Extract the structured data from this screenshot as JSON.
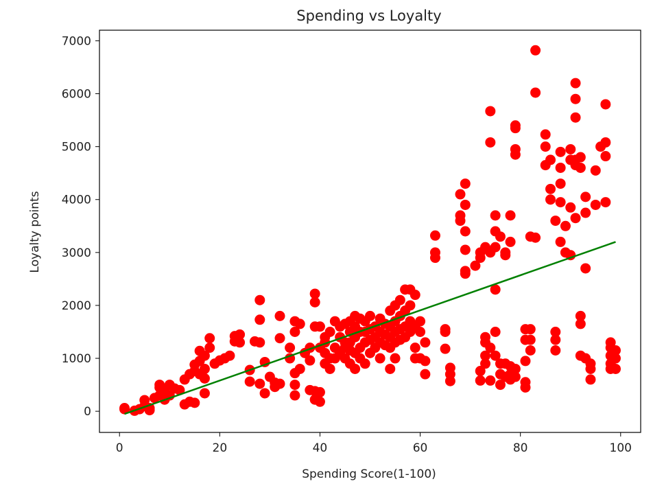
{
  "chart_data": {
    "type": "scatter",
    "title": "Spending vs Loyalty",
    "xlabel": "Spending Score(1-100)",
    "ylabel": "Loyalty points",
    "xlim": [
      -4,
      104
    ],
    "ylim": [
      -400,
      7200
    ],
    "xticks": [
      0,
      20,
      40,
      60,
      80,
      100
    ],
    "yticks": [
      0,
      1000,
      2000,
      3000,
      4000,
      5000,
      6000,
      7000
    ],
    "grid": false,
    "colors": {
      "points": "#ff0000",
      "fit_line": "#008000",
      "axes": "#000000"
    },
    "fit_line": {
      "x": [
        1,
        99
      ],
      "y": [
        -50,
        3200
      ]
    },
    "series": [
      {
        "kind": "scatter",
        "points": [
          [
            1,
            40
          ],
          [
            1,
            60
          ],
          [
            3,
            10
          ],
          [
            4,
            40
          ],
          [
            5,
            100
          ],
          [
            5,
            210
          ],
          [
            6,
            60
          ],
          [
            6,
            20
          ],
          [
            7,
            250
          ],
          [
            8,
            300
          ],
          [
            8,
            450
          ],
          [
            8,
            500
          ],
          [
            9,
            380
          ],
          [
            9,
            220
          ],
          [
            10,
            500
          ],
          [
            10,
            300
          ],
          [
            11,
            430
          ],
          [
            12,
            400
          ],
          [
            13,
            130
          ],
          [
            13,
            600
          ],
          [
            14,
            700
          ],
          [
            14,
            180
          ],
          [
            15,
            760
          ],
          [
            15,
            880
          ],
          [
            15,
            160
          ],
          [
            16,
            1140
          ],
          [
            16,
            950
          ],
          [
            16,
            700
          ],
          [
            17,
            340
          ],
          [
            17,
            620
          ],
          [
            17,
            800
          ],
          [
            17,
            1050
          ],
          [
            18,
            1200
          ],
          [
            18,
            1380
          ],
          [
            19,
            900
          ],
          [
            20,
            960
          ],
          [
            21,
            1000
          ],
          [
            22,
            1050
          ],
          [
            23,
            1320
          ],
          [
            23,
            1420
          ],
          [
            24,
            1450
          ],
          [
            24,
            1300
          ],
          [
            26,
            780
          ],
          [
            26,
            560
          ],
          [
            27,
            1320
          ],
          [
            28,
            2100
          ],
          [
            28,
            1730
          ],
          [
            28,
            1300
          ],
          [
            28,
            520
          ],
          [
            29,
            340
          ],
          [
            29,
            930
          ],
          [
            30,
            650
          ],
          [
            31,
            460
          ],
          [
            31,
            540
          ],
          [
            32,
            1800
          ],
          [
            32,
            1380
          ],
          [
            32,
            520
          ],
          [
            34,
            1200
          ],
          [
            34,
            1000
          ],
          [
            35,
            720
          ],
          [
            35,
            1500
          ],
          [
            35,
            1700
          ],
          [
            35,
            500
          ],
          [
            35,
            300
          ],
          [
            36,
            800
          ],
          [
            36,
            1650
          ],
          [
            37,
            1100
          ],
          [
            38,
            960
          ],
          [
            38,
            1200
          ],
          [
            38,
            400
          ],
          [
            39,
            2220
          ],
          [
            39,
            2060
          ],
          [
            39,
            1600
          ],
          [
            39,
            380
          ],
          [
            39,
            220
          ],
          [
            40,
            360
          ],
          [
            40,
            180
          ],
          [
            40,
            1600
          ],
          [
            40,
            1200
          ],
          [
            41,
            1300
          ],
          [
            41,
            1100
          ],
          [
            41,
            900
          ],
          [
            41,
            1400
          ],
          [
            42,
            1500
          ],
          [
            42,
            1000
          ],
          [
            42,
            800
          ],
          [
            43,
            1700
          ],
          [
            43,
            1200
          ],
          [
            43,
            1000
          ],
          [
            44,
            1600
          ],
          [
            44,
            1400
          ],
          [
            44,
            1100
          ],
          [
            45,
            1650
          ],
          [
            45,
            1300
          ],
          [
            45,
            1200
          ],
          [
            45,
            1000
          ],
          [
            46,
            1700
          ],
          [
            46,
            1500
          ],
          [
            46,
            1300
          ],
          [
            46,
            1150
          ],
          [
            46,
            900
          ],
          [
            47,
            1800
          ],
          [
            47,
            1600
          ],
          [
            47,
            1400
          ],
          [
            47,
            1100
          ],
          [
            47,
            800
          ],
          [
            48,
            1750
          ],
          [
            48,
            1500
          ],
          [
            48,
            1200
          ],
          [
            48,
            1000
          ],
          [
            49,
            1700
          ],
          [
            49,
            1500
          ],
          [
            49,
            1300
          ],
          [
            49,
            900
          ],
          [
            50,
            1800
          ],
          [
            50,
            1550
          ],
          [
            50,
            1350
          ],
          [
            50,
            1100
          ],
          [
            51,
            1600
          ],
          [
            51,
            1400
          ],
          [
            51,
            1200
          ],
          [
            52,
            1750
          ],
          [
            52,
            1500
          ],
          [
            52,
            1300
          ],
          [
            52,
            1000
          ],
          [
            53,
            1650
          ],
          [
            53,
            1450
          ],
          [
            53,
            1250
          ],
          [
            54,
            1900
          ],
          [
            54,
            1600
          ],
          [
            54,
            1400
          ],
          [
            54,
            1200
          ],
          [
            54,
            800
          ],
          [
            55,
            2000
          ],
          [
            55,
            1700
          ],
          [
            55,
            1500
          ],
          [
            55,
            1300
          ],
          [
            55,
            1000
          ],
          [
            56,
            2100
          ],
          [
            56,
            1800
          ],
          [
            56,
            1550
          ],
          [
            56,
            1350
          ],
          [
            57,
            2300
          ],
          [
            57,
            1900
          ],
          [
            57,
            1600
          ],
          [
            57,
            1400
          ],
          [
            58,
            2300
          ],
          [
            58,
            2000
          ],
          [
            58,
            1700
          ],
          [
            58,
            1500
          ],
          [
            59,
            2200
          ],
          [
            59,
            1600
          ],
          [
            59,
            1200
          ],
          [
            59,
            1000
          ],
          [
            60,
            1700
          ],
          [
            60,
            1500
          ],
          [
            60,
            1000
          ],
          [
            61,
            1300
          ],
          [
            61,
            950
          ],
          [
            61,
            700
          ],
          [
            63,
            3320
          ],
          [
            63,
            3000
          ],
          [
            63,
            2900
          ],
          [
            65,
            1550
          ],
          [
            65,
            1500
          ],
          [
            65,
            1180
          ],
          [
            66,
            820
          ],
          [
            66,
            700
          ],
          [
            66,
            570
          ],
          [
            68,
            3700
          ],
          [
            68,
            3600
          ],
          [
            68,
            4100
          ],
          [
            69,
            4300
          ],
          [
            69,
            3900
          ],
          [
            69,
            3400
          ],
          [
            69,
            3050
          ],
          [
            69,
            2600
          ],
          [
            69,
            2650
          ],
          [
            71,
            2750
          ],
          [
            72,
            3000
          ],
          [
            72,
            2900
          ],
          [
            72,
            760
          ],
          [
            72,
            580
          ],
          [
            73,
            3100
          ],
          [
            73,
            1400
          ],
          [
            73,
            1300
          ],
          [
            73,
            1050
          ],
          [
            73,
            900
          ],
          [
            74,
            5670
          ],
          [
            74,
            5080
          ],
          [
            74,
            3000
          ],
          [
            74,
            1200
          ],
          [
            74,
            580
          ],
          [
            75,
            3700
          ],
          [
            75,
            3400
          ],
          [
            75,
            3100
          ],
          [
            75,
            2300
          ],
          [
            75,
            1500
          ],
          [
            75,
            1050
          ],
          [
            76,
            3300
          ],
          [
            76,
            900
          ],
          [
            76,
            700
          ],
          [
            76,
            500
          ],
          [
            77,
            3000
          ],
          [
            77,
            2950
          ],
          [
            77,
            900
          ],
          [
            77,
            650
          ],
          [
            78,
            3700
          ],
          [
            78,
            3200
          ],
          [
            78,
            850
          ],
          [
            78,
            700
          ],
          [
            78,
            600
          ],
          [
            79,
            5400
          ],
          [
            79,
            5350
          ],
          [
            79,
            4950
          ],
          [
            79,
            4850
          ],
          [
            79,
            800
          ],
          [
            79,
            650
          ],
          [
            81,
            1550
          ],
          [
            81,
            1350
          ],
          [
            81,
            950
          ],
          [
            81,
            550
          ],
          [
            81,
            450
          ],
          [
            82,
            3300
          ],
          [
            82,
            1550
          ],
          [
            82,
            1350
          ],
          [
            82,
            1150
          ],
          [
            83,
            6820
          ],
          [
            83,
            6020
          ],
          [
            83,
            3280
          ],
          [
            85,
            5230
          ],
          [
            85,
            5000
          ],
          [
            85,
            4650
          ],
          [
            86,
            4750
          ],
          [
            86,
            4200
          ],
          [
            86,
            4000
          ],
          [
            87,
            3600
          ],
          [
            87,
            1500
          ],
          [
            87,
            1350
          ],
          [
            87,
            1150
          ],
          [
            88,
            4900
          ],
          [
            88,
            4600
          ],
          [
            88,
            4300
          ],
          [
            88,
            3950
          ],
          [
            88,
            3200
          ],
          [
            89,
            3500
          ],
          [
            89,
            3000
          ],
          [
            90,
            4950
          ],
          [
            90,
            4750
          ],
          [
            90,
            3850
          ],
          [
            90,
            2950
          ],
          [
            91,
            6200
          ],
          [
            91,
            5900
          ],
          [
            91,
            5550
          ],
          [
            91,
            4750
          ],
          [
            91,
            4650
          ],
          [
            91,
            3650
          ],
          [
            92,
            4800
          ],
          [
            92,
            4600
          ],
          [
            92,
            1800
          ],
          [
            92,
            1650
          ],
          [
            92,
            1050
          ],
          [
            93,
            4050
          ],
          [
            93,
            3750
          ],
          [
            93,
            2700
          ],
          [
            93,
            1000
          ],
          [
            94,
            900
          ],
          [
            94,
            800
          ],
          [
            94,
            600
          ],
          [
            95,
            4550
          ],
          [
            95,
            3900
          ],
          [
            96,
            5000
          ],
          [
            97,
            5800
          ],
          [
            97,
            5080
          ],
          [
            97,
            4820
          ],
          [
            97,
            3950
          ],
          [
            98,
            1300
          ],
          [
            98,
            1200
          ],
          [
            98,
            1050
          ],
          [
            98,
            900
          ],
          [
            98,
            800
          ],
          [
            99,
            1150
          ],
          [
            99,
            1000
          ],
          [
            99,
            800
          ]
        ]
      }
    ]
  }
}
